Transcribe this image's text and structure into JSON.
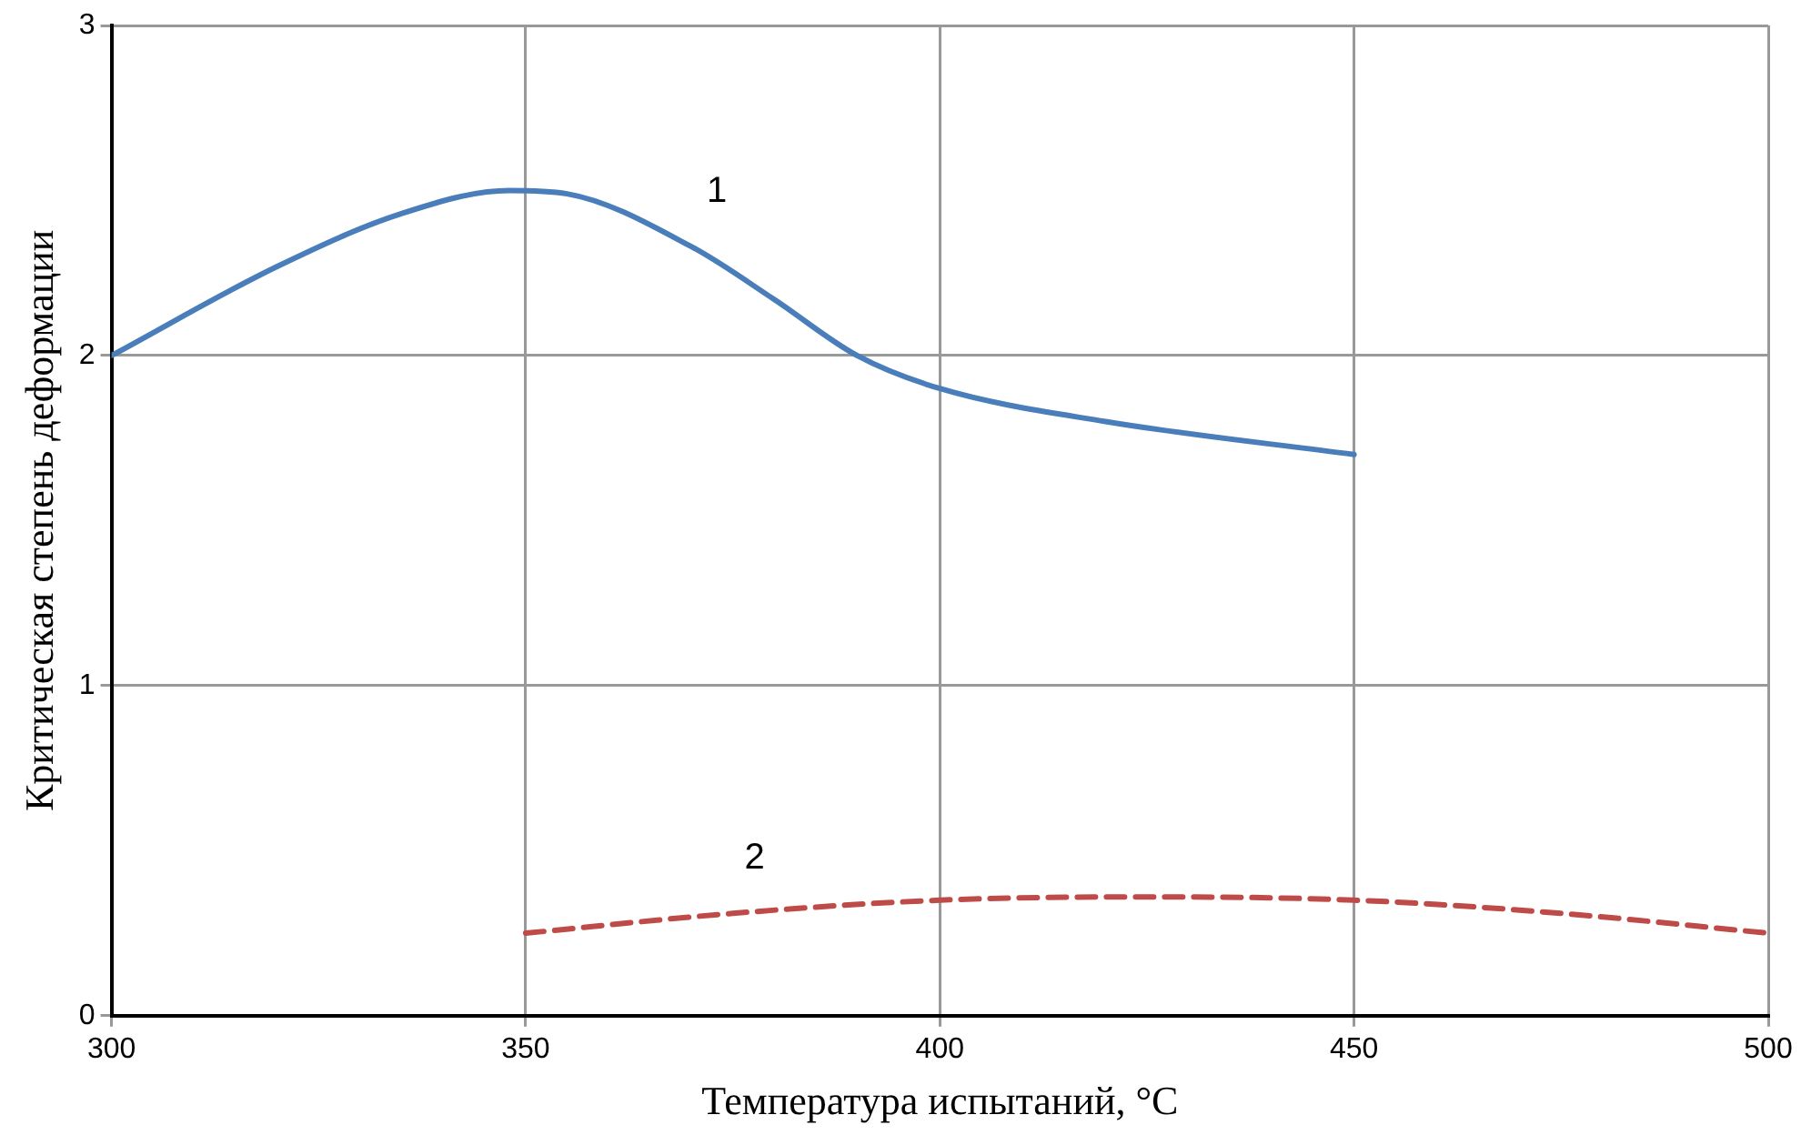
{
  "chart_data": {
    "type": "line",
    "xlabel": "Температура испытаний, °C",
    "ylabel": "Критическая степень деформации",
    "xlim": [
      300,
      500
    ],
    "xticks": [
      300,
      350,
      400,
      450,
      500
    ],
    "ylim": [
      0,
      3
    ],
    "yticks": [
      0,
      1,
      2,
      3
    ],
    "grid": true,
    "legend": false,
    "marker": "none",
    "series": [
      {
        "name": "1",
        "color": "#4a7ebb",
        "line_style": "solid",
        "x": [
          300,
          320,
          335,
          348,
          355,
          370,
          380,
          390,
          400,
          420,
          450
        ],
        "values": [
          2.0,
          2.27,
          2.43,
          2.5,
          2.49,
          2.33,
          2.17,
          2.0,
          1.9,
          1.8,
          1.7
        ]
      },
      {
        "name": "2",
        "color": "#be4b48",
        "line_style": "dashed",
        "x": [
          350,
          375,
          400,
          425,
          450,
          475,
          500
        ],
        "values": [
          0.25,
          0.31,
          0.35,
          0.36,
          0.35,
          0.31,
          0.25
        ]
      }
    ]
  }
}
